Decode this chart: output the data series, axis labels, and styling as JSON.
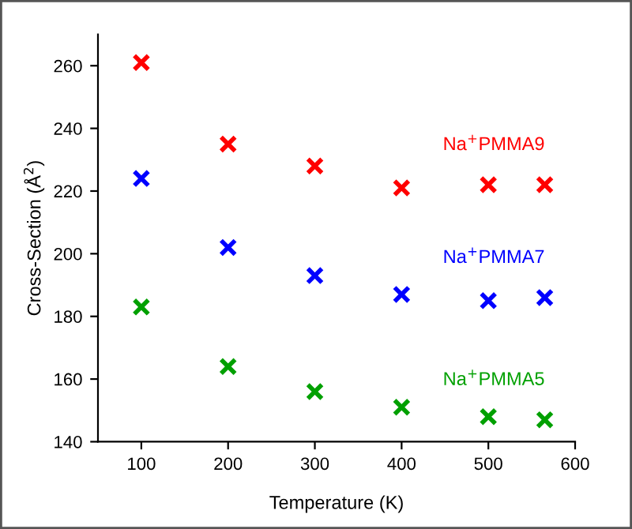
{
  "chart_data": {
    "type": "scatter",
    "xlabel": "Temperature (K)",
    "ylabel": "Cross-Section (Å$^{2}$)",
    "x": [
      100,
      200,
      300,
      400,
      500,
      565
    ],
    "series": [
      {
        "name": "Na$^{+}$PMMA9",
        "color": "#ff0000",
        "values": [
          261,
          235,
          228,
          221,
          222,
          222
        ]
      },
      {
        "name": "Na$^{+}$PMMA7",
        "color": "#0000ff",
        "values": [
          224,
          202,
          193,
          187,
          185,
          186
        ]
      },
      {
        "name": "Na$^{+}$PMMA5",
        "color": "#00a000",
        "values": [
          183,
          164,
          156,
          151,
          148,
          147
        ]
      }
    ],
    "marker": "cross",
    "grid": false,
    "legend": false,
    "xlim": [
      50,
      600
    ],
    "xticks": [
      100,
      200,
      300,
      400,
      500,
      600
    ],
    "ylim": [
      140,
      270
    ],
    "yticks": [
      140,
      160,
      180,
      200,
      220,
      240,
      260
    ]
  }
}
